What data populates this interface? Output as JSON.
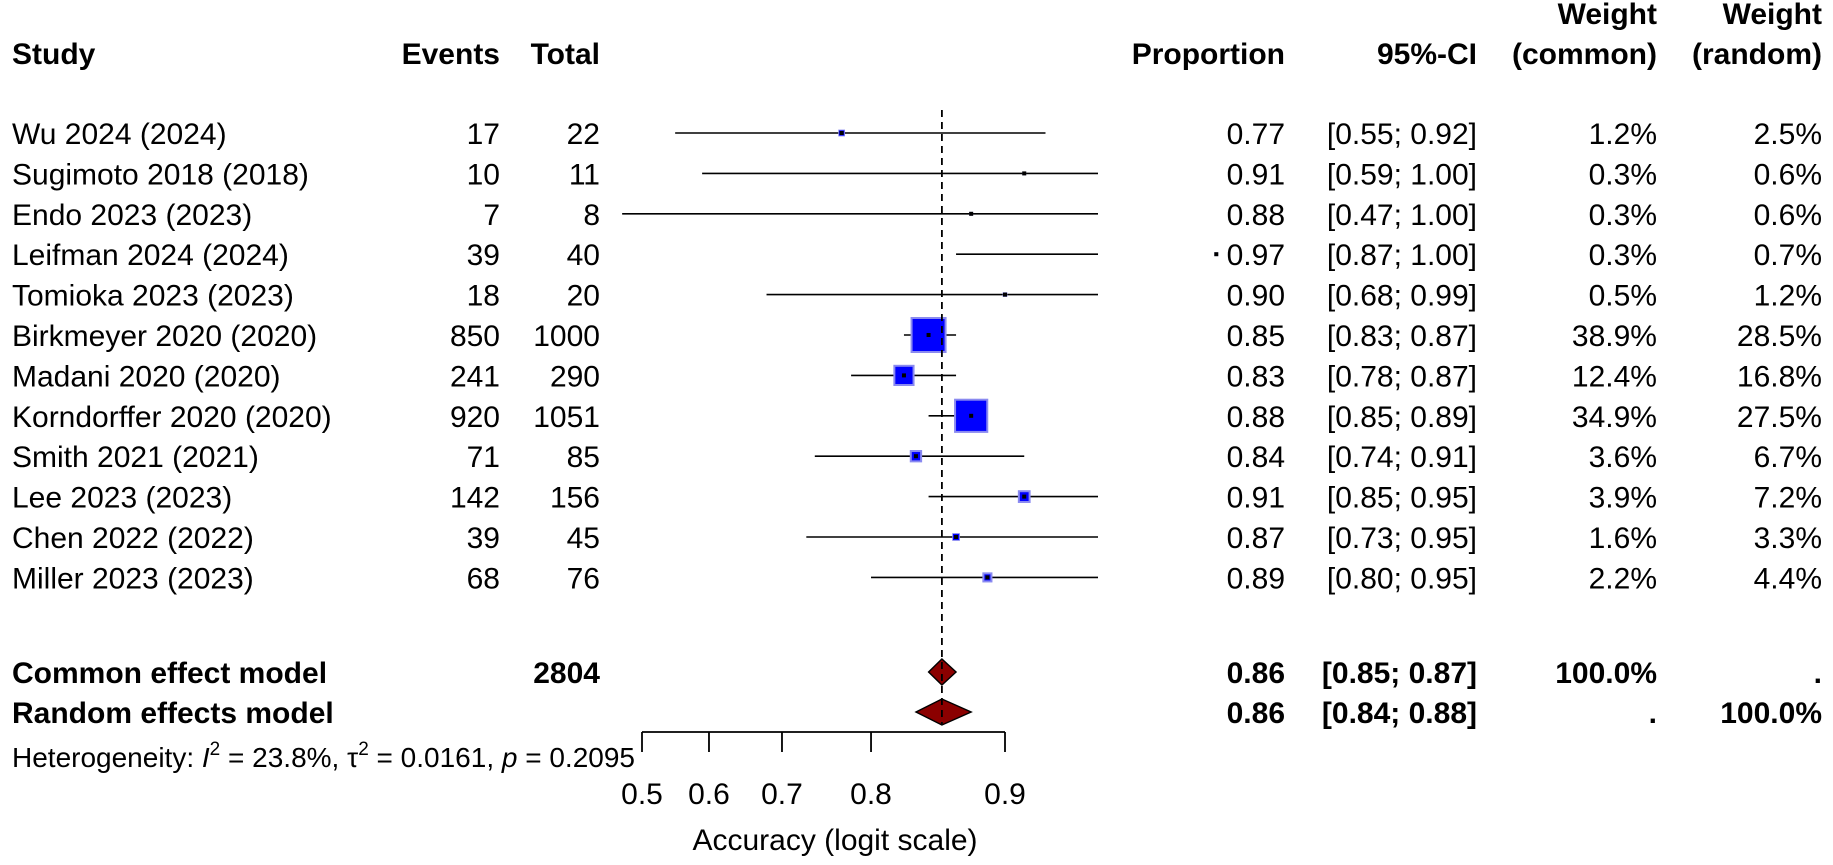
{
  "chart_data": {
    "type": "forest",
    "xlabel": "Accuracy (logit scale)",
    "x_scale": "logit",
    "xlim": [
      0.5,
      0.9
    ],
    "x_ticks": [
      "0.5",
      "0.6",
      "0.7",
      "0.8",
      "0.9"
    ],
    "headers": {
      "study": "Study",
      "events": "Events",
      "total": "Total",
      "proportion": "Proportion",
      "ci": "95%-CI",
      "weight_common_line1": "Weight",
      "weight_common_line2": "(common)",
      "weight_random_line1": "Weight",
      "weight_random_line2": "(random)"
    },
    "studies": [
      {
        "name": "Wu 2024 (2024)",
        "events": "17",
        "total": "22",
        "proportion": 0.77,
        "lower": 0.55,
        "upper": 0.92,
        "prop_text": "0.77",
        "ci_text": "[0.55; 0.92]",
        "w_common": "1.2%",
        "w_random": "2.5%",
        "w": 1.2
      },
      {
        "name": "Sugimoto 2018 (2018)",
        "events": "10",
        "total": "11",
        "proportion": 0.91,
        "lower": 0.59,
        "upper": 1.0,
        "prop_text": "0.91",
        "ci_text": "[0.59; 1.00]",
        "w_common": "0.3%",
        "w_random": "0.6%",
        "w": 0.3
      },
      {
        "name": "Endo 2023 (2023)",
        "events": "7",
        "total": "8",
        "proportion": 0.88,
        "lower": 0.47,
        "upper": 1.0,
        "prop_text": "0.88",
        "ci_text": "[0.47; 1.00]",
        "w_common": "0.3%",
        "w_random": "0.6%",
        "w": 0.3
      },
      {
        "name": "Leifman 2024 (2024)",
        "events": "39",
        "total": "40",
        "proportion": 0.97,
        "lower": 0.87,
        "upper": 1.0,
        "prop_text": "0.97",
        "ci_text": "[0.87; 1.00]",
        "w_common": "0.3%",
        "w_random": "0.7%",
        "w": 0.3
      },
      {
        "name": "Tomioka 2023 (2023)",
        "events": "18",
        "total": "20",
        "proportion": 0.9,
        "lower": 0.68,
        "upper": 0.99,
        "prop_text": "0.90",
        "ci_text": "[0.68; 0.99]",
        "w_common": "0.5%",
        "w_random": "1.2%",
        "w": 0.5
      },
      {
        "name": "Birkmeyer 2020 (2020)",
        "events": "850",
        "total": "1000",
        "proportion": 0.85,
        "lower": 0.83,
        "upper": 0.87,
        "prop_text": "0.85",
        "ci_text": "[0.83; 0.87]",
        "w_common": "38.9%",
        "w_random": "28.5%",
        "w": 38.9
      },
      {
        "name": "Madani 2020 (2020)",
        "events": "241",
        "total": "290",
        "proportion": 0.83,
        "lower": 0.78,
        "upper": 0.87,
        "prop_text": "0.83",
        "ci_text": "[0.78; 0.87]",
        "w_common": "12.4%",
        "w_random": "16.8%",
        "w": 12.4
      },
      {
        "name": "Korndorffer 2020 (2020)",
        "events": "920",
        "total": "1051",
        "proportion": 0.88,
        "lower": 0.85,
        "upper": 0.89,
        "prop_text": "0.88",
        "ci_text": "[0.85; 0.89]",
        "w_common": "34.9%",
        "w_random": "27.5%",
        "w": 34.9
      },
      {
        "name": "Smith 2021 (2021)",
        "events": "71",
        "total": "85",
        "proportion": 0.84,
        "lower": 0.74,
        "upper": 0.91,
        "prop_text": "0.84",
        "ci_text": "[0.74; 0.91]",
        "w_common": "3.6%",
        "w_random": "6.7%",
        "w": 3.6
      },
      {
        "name": "Lee 2023 (2023)",
        "events": "142",
        "total": "156",
        "proportion": 0.91,
        "lower": 0.85,
        "upper": 0.95,
        "prop_text": "0.91",
        "ci_text": "[0.85; 0.95]",
        "w_common": "3.9%",
        "w_random": "7.2%",
        "w": 3.9
      },
      {
        "name": "Chen 2022 (2022)",
        "events": "39",
        "total": "45",
        "proportion": 0.87,
        "lower": 0.73,
        "upper": 0.95,
        "prop_text": "0.87",
        "ci_text": "[0.73; 0.95]",
        "w_common": "1.6%",
        "w_random": "3.3%",
        "w": 1.6
      },
      {
        "name": "Miller 2023 (2023)",
        "events": "68",
        "total": "76",
        "proportion": 0.89,
        "lower": 0.8,
        "upper": 0.95,
        "prop_text": "0.89",
        "ci_text": "[0.80; 0.95]",
        "w_common": "2.2%",
        "w_random": "4.4%",
        "w": 2.2
      }
    ],
    "pooled": [
      {
        "name": "Common effect model",
        "total": "2804",
        "proportion": 0.86,
        "lower": 0.85,
        "upper": 0.87,
        "prop_text": "0.86",
        "ci_text": "[0.85; 0.87]",
        "w_common": "100.0%",
        "w_random": "."
      },
      {
        "name": "Random effects model",
        "total": "",
        "proportion": 0.86,
        "lower": 0.84,
        "upper": 0.88,
        "prop_text": "0.86",
        "ci_text": "[0.84; 0.88]",
        "w_common": ".",
        "w_random": "100.0%"
      }
    ],
    "heterogeneity": {
      "prefix": "Heterogeneity: ",
      "i2_symbol": "I",
      "i2_exp": "2",
      "i2_value": " = 23.8%, ",
      "tau_symbol": "τ",
      "tau_exp": "2",
      "tau_value": " = 0.0161, ",
      "p_symbol": "p",
      "p_value": " = 0.2095"
    },
    "reference_line": 0.86,
    "colors": {
      "study_box": "#0000ff",
      "study_box_border": "#8a8af0",
      "diamond": "#8b0000",
      "line": "#000000"
    }
  }
}
